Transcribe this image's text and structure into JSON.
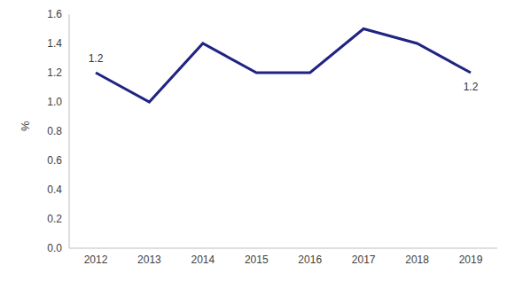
{
  "chart_data": {
    "type": "line",
    "y_label": "%",
    "categories": [
      "2012",
      "2013",
      "2014",
      "2015",
      "2016",
      "2017",
      "2018",
      "2019"
    ],
    "values": [
      1.2,
      1.0,
      1.4,
      1.2,
      1.2,
      1.5,
      1.4,
      1.2
    ],
    "color": "#1f2482",
    "ylim": [
      0,
      1.6
    ],
    "yticks": [
      {
        "value": 0,
        "label": "0.0"
      },
      0.2,
      0.4,
      0.6,
      0.8,
      {
        "value": 1,
        "label": "1.0"
      },
      1.2,
      1.4,
      1.6
    ],
    "grid": false,
    "annotations": [
      {
        "x": "2012",
        "y": 1.2,
        "text": "1.2"
      },
      {
        "x": "2019",
        "y": 1.2,
        "text": "1.2"
      }
    ]
  }
}
